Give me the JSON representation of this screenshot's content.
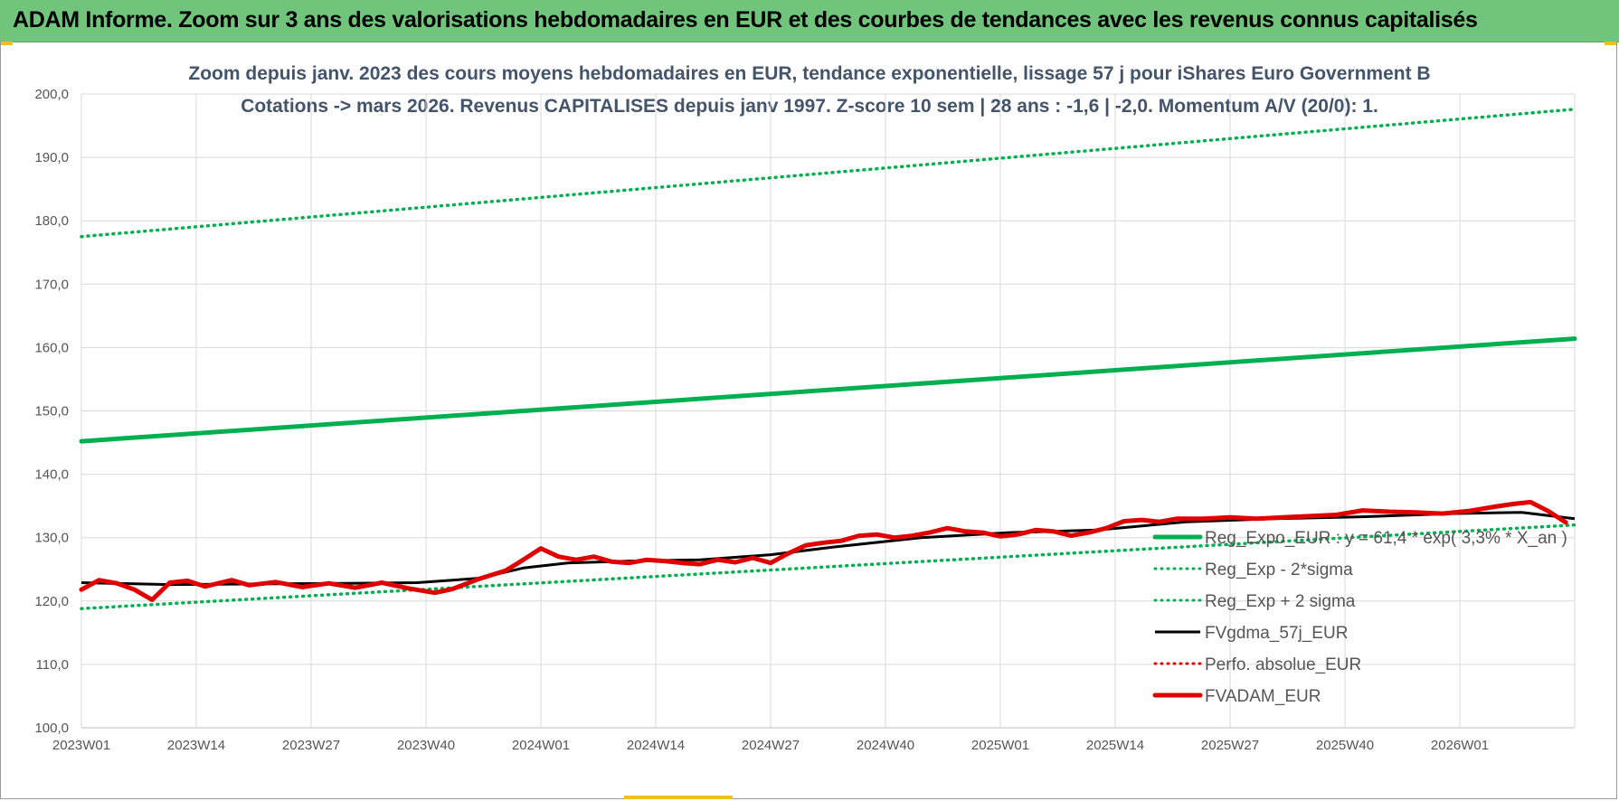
{
  "banner": {
    "title": "ADAM Informe. Zoom sur 3 ans des valorisations hebdomadaires en EUR et des courbes de tendances avec les revenus connus capitalisés"
  },
  "colors": {
    "green": "#00b050",
    "red": "#e00000",
    "black": "#000000",
    "banner": "#70c47c",
    "text": "#44546a"
  },
  "chart_data": {
    "type": "line",
    "title": "Zoom depuis janv. 2023 des cours moyens hebdomadaires en EUR, tendance exponentielle, lissage 57 j pour iShares Euro Government B",
    "subtitle": "Cotations -> mars 2026. Revenus CAPITALISES depuis janv 1997. Z-score 10 sem | 28 ans : -1,6 | -2,0. Momentum A/V (20/0): 1.",
    "ylim": [
      100,
      200
    ],
    "yticks": [
      "100,0",
      "110,0",
      "120,0",
      "130,0",
      "140,0",
      "150,0",
      "160,0",
      "170,0",
      "180,0",
      "190,0",
      "200,0"
    ],
    "ytick_values": [
      100,
      110,
      120,
      130,
      140,
      150,
      160,
      170,
      180,
      190,
      200
    ],
    "x_range": [
      0,
      169
    ],
    "xticks": [
      {
        "label": "2023W01",
        "week": 0
      },
      {
        "label": "2023W14",
        "week": 13
      },
      {
        "label": "2023W27",
        "week": 26
      },
      {
        "label": "2023W40",
        "week": 39
      },
      {
        "label": "2024W01",
        "week": 52
      },
      {
        "label": "2024W14",
        "week": 65
      },
      {
        "label": "2024W27",
        "week": 78
      },
      {
        "label": "2024W40",
        "week": 91
      },
      {
        "label": "2025W01",
        "week": 104
      },
      {
        "label": "2025W14",
        "week": 117
      },
      {
        "label": "2025W27",
        "week": 130
      },
      {
        "label": "2025W40",
        "week": 143
      },
      {
        "label": "2026W01",
        "week": 156
      }
    ],
    "grid": true,
    "legend_position": "lower-right",
    "series": [
      {
        "name": "Reg_Expo_EUR : y = 61,4 * exp( 3,3% * X_an )",
        "style": "solid-thick",
        "color": "#00b050",
        "points": [
          [
            0,
            145.2
          ],
          [
            169,
            161.4
          ]
        ]
      },
      {
        "name": "Reg_Exp - 2*sigma",
        "style": "dotted",
        "color": "#00b050",
        "points": [
          [
            0,
            118.8
          ],
          [
            169,
            132.0
          ]
        ]
      },
      {
        "name": "Reg_Exp + 2 sigma",
        "style": "dotted",
        "color": "#00b050",
        "points": [
          [
            0,
            177.5
          ],
          [
            169,
            197.6
          ]
        ]
      },
      {
        "name": "FVgdma_57j_EUR",
        "style": "solid",
        "color": "#000000",
        "points": [
          [
            0,
            122.9
          ],
          [
            10,
            122.6
          ],
          [
            20,
            122.7
          ],
          [
            30,
            122.8
          ],
          [
            38,
            122.9
          ],
          [
            45,
            123.6
          ],
          [
            50,
            125.2
          ],
          [
            55,
            126.0
          ],
          [
            62,
            126.3
          ],
          [
            70,
            126.5
          ],
          [
            78,
            127.3
          ],
          [
            85,
            128.5
          ],
          [
            95,
            130.0
          ],
          [
            105,
            130.8
          ],
          [
            115,
            131.2
          ],
          [
            125,
            132.5
          ],
          [
            135,
            133.0
          ],
          [
            145,
            133.3
          ],
          [
            155,
            133.8
          ],
          [
            163,
            134.0
          ],
          [
            169,
            133.0
          ]
        ]
      },
      {
        "name": "Perfo. absolue_EUR",
        "style": "dotted",
        "color": "#e00000",
        "points": []
      },
      {
        "name": "FVADAM_EUR",
        "style": "solid-thick",
        "color": "#e00000",
        "points": [
          [
            0,
            121.8
          ],
          [
            2,
            123.3
          ],
          [
            4,
            122.8
          ],
          [
            6,
            121.8
          ],
          [
            8,
            120.2
          ],
          [
            10,
            122.9
          ],
          [
            12,
            123.2
          ],
          [
            14,
            122.3
          ],
          [
            17,
            123.3
          ],
          [
            19,
            122.5
          ],
          [
            22,
            123.0
          ],
          [
            25,
            122.2
          ],
          [
            28,
            122.8
          ],
          [
            31,
            122.1
          ],
          [
            34,
            122.9
          ],
          [
            37,
            122.0
          ],
          [
            40,
            121.3
          ],
          [
            42,
            121.9
          ],
          [
            45,
            123.5
          ],
          [
            48,
            124.8
          ],
          [
            50,
            126.5
          ],
          [
            52,
            128.3
          ],
          [
            54,
            127.0
          ],
          [
            56,
            126.5
          ],
          [
            58,
            127.0
          ],
          [
            60,
            126.2
          ],
          [
            62,
            126.0
          ],
          [
            64,
            126.5
          ],
          [
            66,
            126.3
          ],
          [
            68,
            126.0
          ],
          [
            70,
            125.8
          ],
          [
            72,
            126.5
          ],
          [
            74,
            126.1
          ],
          [
            76,
            126.8
          ],
          [
            78,
            126.0
          ],
          [
            80,
            127.5
          ],
          [
            82,
            128.8
          ],
          [
            84,
            129.2
          ],
          [
            86,
            129.5
          ],
          [
            88,
            130.3
          ],
          [
            90,
            130.5
          ],
          [
            92,
            130.0
          ],
          [
            94,
            130.3
          ],
          [
            96,
            130.8
          ],
          [
            98,
            131.5
          ],
          [
            100,
            131.0
          ],
          [
            102,
            130.8
          ],
          [
            104,
            130.2
          ],
          [
            106,
            130.5
          ],
          [
            108,
            131.2
          ],
          [
            110,
            131.0
          ],
          [
            112,
            130.3
          ],
          [
            114,
            130.8
          ],
          [
            116,
            131.5
          ],
          [
            118,
            132.6
          ],
          [
            120,
            132.8
          ],
          [
            122,
            132.5
          ],
          [
            124,
            133.0
          ],
          [
            127,
            133.0
          ],
          [
            130,
            133.2
          ],
          [
            133,
            133.0
          ],
          [
            136,
            133.2
          ],
          [
            139,
            133.4
          ],
          [
            142,
            133.6
          ],
          [
            145,
            134.3
          ],
          [
            148,
            134.1
          ],
          [
            151,
            134.0
          ],
          [
            154,
            133.8
          ],
          [
            157,
            134.2
          ],
          [
            160,
            134.9
          ],
          [
            162,
            135.3
          ],
          [
            164,
            135.6
          ],
          [
            166,
            134.2
          ],
          [
            168,
            132.4
          ]
        ]
      }
    ]
  }
}
